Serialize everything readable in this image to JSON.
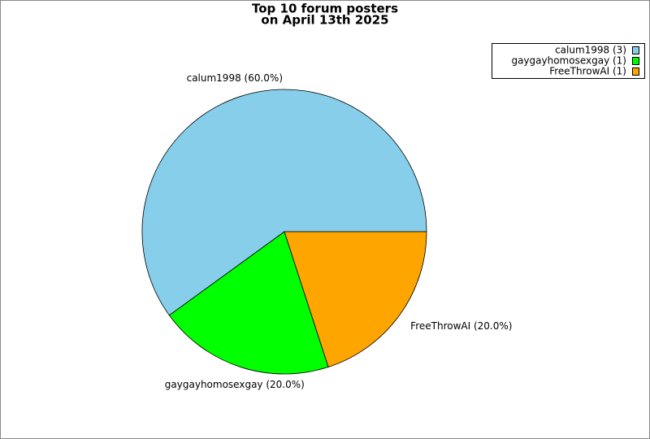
{
  "chart_data": {
    "type": "pie",
    "title": [
      "Top 10 forum posters",
      "on April 13th 2025"
    ],
    "categories": [
      "calum1998",
      "gaygayhomosexgay",
      "FreeThrowAI"
    ],
    "values": [
      3,
      1,
      1
    ],
    "slice_labels": [
      "calum1998 (60.0%)",
      "gaygayhomosexgay (20.0%)",
      "FreeThrowAI (20.0%)"
    ],
    "legend_labels": [
      "calum1998 (3)",
      "gaygayhomosexgay (1)",
      "FreeThrowAI (1)"
    ],
    "colors": [
      "#87ceeb",
      "#00ff00",
      "#ffa500"
    ],
    "legend": "top-right"
  }
}
